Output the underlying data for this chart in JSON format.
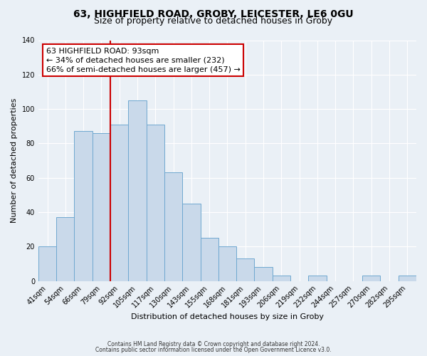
{
  "title1": "63, HIGHFIELD ROAD, GROBY, LEICESTER, LE6 0GU",
  "title2": "Size of property relative to detached houses in Groby",
  "xlabel": "Distribution of detached houses by size in Groby",
  "ylabel": "Number of detached properties",
  "bar_labels": [
    "41sqm",
    "54sqm",
    "66sqm",
    "79sqm",
    "92sqm",
    "105sqm",
    "117sqm",
    "130sqm",
    "143sqm",
    "155sqm",
    "168sqm",
    "181sqm",
    "193sqm",
    "206sqm",
    "219sqm",
    "232sqm",
    "244sqm",
    "257sqm",
    "270sqm",
    "282sqm",
    "295sqm"
  ],
  "bar_heights": [
    20,
    37,
    87,
    86,
    91,
    105,
    91,
    63,
    45,
    25,
    20,
    13,
    8,
    3,
    0,
    3,
    0,
    0,
    3,
    0,
    3
  ],
  "bar_color": "#c9d9ea",
  "bar_edgecolor": "#6fa8d0",
  "vline_color": "#cc0000",
  "vline_index": 4,
  "annotation_title": "63 HIGHFIELD ROAD: 93sqm",
  "annotation_line1": "← 34% of detached houses are smaller (232)",
  "annotation_line2": "66% of semi-detached houses are larger (457) →",
  "annotation_box_edgecolor": "#cc0000",
  "annotation_bg": "#ffffff",
  "ylim": [
    0,
    140
  ],
  "yticks": [
    0,
    20,
    40,
    60,
    80,
    100,
    120,
    140
  ],
  "footer1": "Contains HM Land Registry data © Crown copyright and database right 2024.",
  "footer2": "Contains public sector information licensed under the Open Government Licence v3.0.",
  "bg_color": "#eaf0f6",
  "grid_color": "#ffffff",
  "title1_fontsize": 10,
  "title2_fontsize": 9,
  "axis_label_fontsize": 8,
  "tick_fontsize": 7,
  "annotation_fontsize": 8,
  "footer_fontsize": 5.5
}
